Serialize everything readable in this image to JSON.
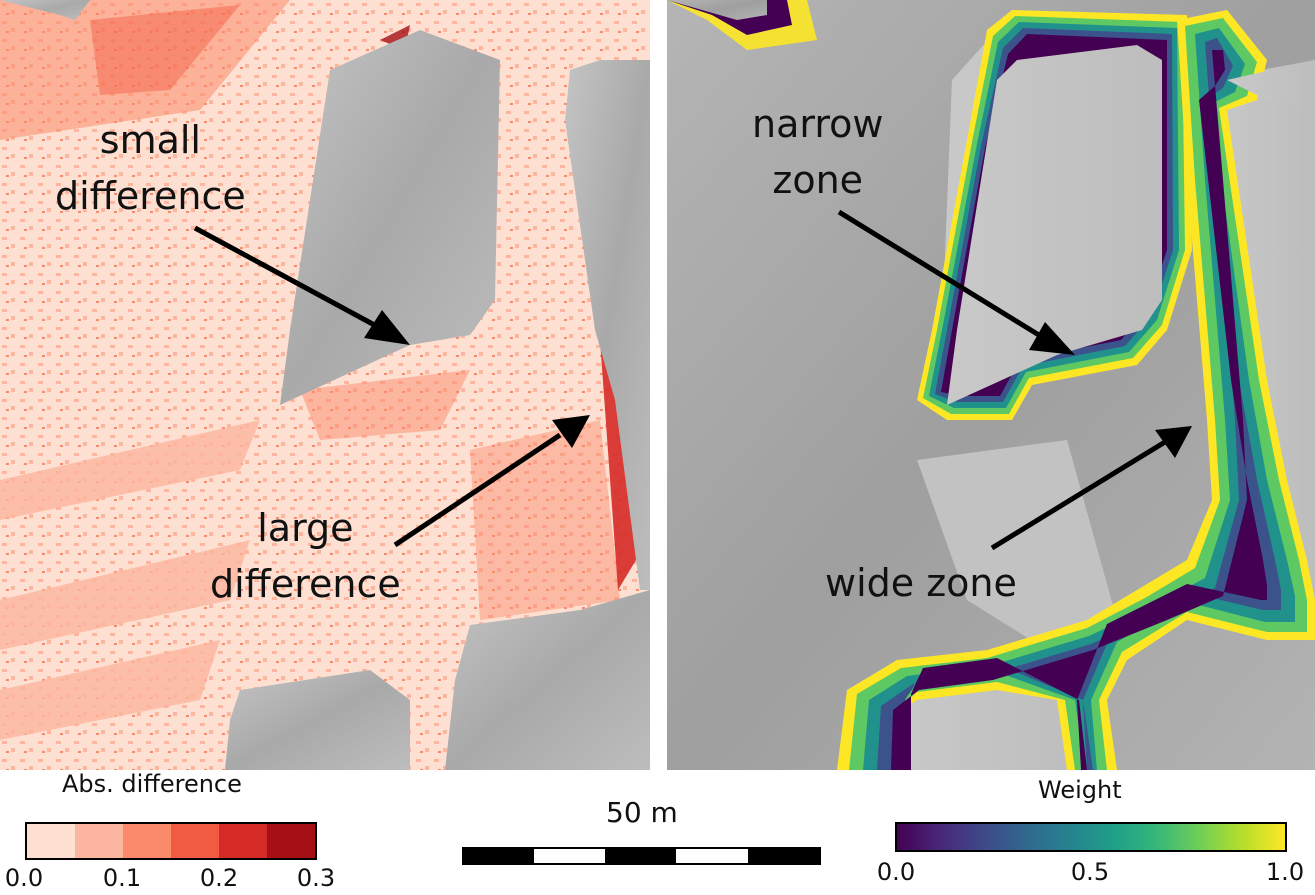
{
  "left_map": {
    "annotations": {
      "small": [
        "small",
        "difference"
      ],
      "large": [
        "large",
        "difference"
      ]
    }
  },
  "right_map": {
    "annotations": {
      "narrow": [
        "narrow",
        "zone"
      ],
      "wide": "wide zone"
    }
  },
  "legend_diff": {
    "title": "Abs. difference",
    "ticks": [
      "0.0",
      "0.1",
      "0.2",
      "0.3"
    ],
    "colors": [
      "#fde0d2",
      "#fcb59f",
      "#fb8a6a",
      "#f15b41",
      "#d62a26",
      "#a50f15"
    ]
  },
  "legend_weight": {
    "title": "Weight",
    "ticks": [
      "0.0",
      "0.5",
      "1.0"
    ],
    "colormap": "viridis"
  },
  "scalebar": {
    "label": "50 m"
  },
  "colors": {
    "hillshade": "#b8b8b8",
    "diff_base": "#fde0d2",
    "arrow": "#000000"
  }
}
